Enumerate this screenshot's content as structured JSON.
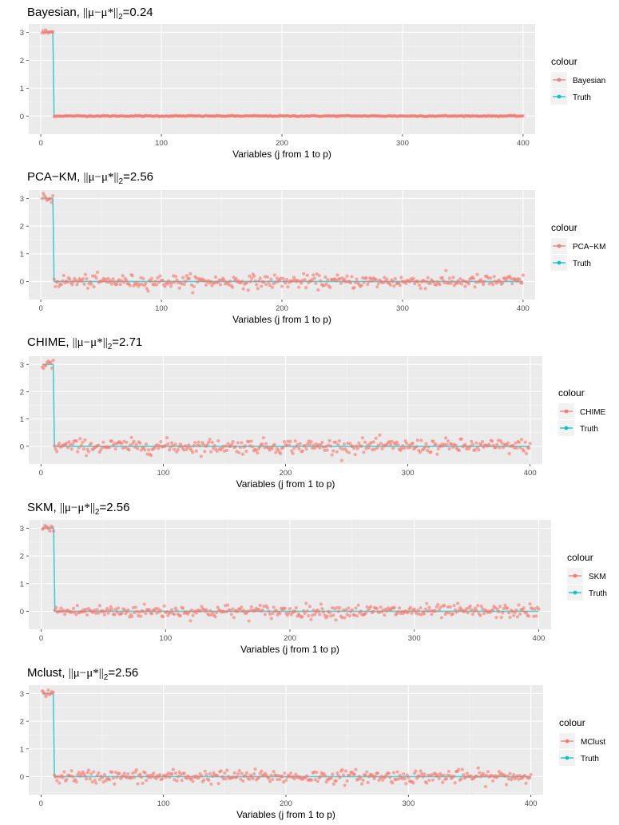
{
  "colors": {
    "estimate": "#F8766D",
    "truth": "#00BFC4",
    "panel_bg": "#EBEBEB",
    "grid_major": "#FFFFFF",
    "tick_text": "#4D4D4D"
  },
  "legend_title": "colour",
  "chart_data": [
    {
      "type": "line+scatter",
      "title_prefix": "Bayesian, ",
      "title_norm": "||μ−μ*||",
      "title_sub": "2",
      "title_value": "=0.24",
      "xlabel": "Variables (j from 1 to p)",
      "ylabel": "",
      "x_ticks": [
        "0",
        "100",
        "200",
        "300",
        "400"
      ],
      "y_ticks": [
        "0",
        "1",
        "2",
        "3"
      ],
      "xlim": [
        -10,
        410
      ],
      "ylim": [
        -0.65,
        3.3
      ],
      "legend": [
        "Bayesian",
        "Truth"
      ],
      "truth": {
        "x_from": 1,
        "x_to": 400,
        "value_first_10": 3,
        "value_rest": 0
      },
      "estimate": {
        "n": 400,
        "first_10_mean": 3.0,
        "noise_sd_first_10": 0.06,
        "rest_mean": 0.0,
        "noise_sd_rest": 0.01
      }
    },
    {
      "type": "line+scatter",
      "title_prefix": "PCA−KM, ",
      "title_norm": "||μ−μ*||",
      "title_sub": "2",
      "title_value": "=2.56",
      "xlabel": "Variables (j from 1 to p)",
      "ylabel": "",
      "x_ticks": [
        "0",
        "100",
        "200",
        "300",
        "400"
      ],
      "y_ticks": [
        "0",
        "1",
        "2",
        "3"
      ],
      "xlim": [
        -10,
        410
      ],
      "ylim": [
        -0.65,
        3.3
      ],
      "legend": [
        "PCA−KM",
        "Truth"
      ],
      "truth": {
        "x_from": 1,
        "x_to": 400,
        "value_first_10": 3,
        "value_rest": 0
      },
      "estimate": {
        "n": 400,
        "first_10_mean": 3.0,
        "noise_sd_first_10": 0.08,
        "rest_mean": 0.0,
        "noise_sd_rest": 0.12
      }
    },
    {
      "type": "line+scatter",
      "title_prefix": "CHIME, ",
      "title_norm": "||μ−μ*||",
      "title_sub": "2",
      "title_value": "=2.71",
      "xlabel": "Variables (j from 1 to p)",
      "ylabel": "",
      "x_ticks": [
        "0",
        "100",
        "200",
        "300",
        "400"
      ],
      "y_ticks": [
        "0",
        "1",
        "2",
        "3"
      ],
      "xlim": [
        -10,
        410
      ],
      "ylim": [
        -0.65,
        3.3
      ],
      "legend": [
        "CHIME",
        "Truth"
      ],
      "truth": {
        "x_from": 1,
        "x_to": 400,
        "value_first_10": 3,
        "value_rest": 0
      },
      "estimate": {
        "n": 400,
        "first_10_mean": 3.0,
        "noise_sd_first_10": 0.1,
        "rest_mean": 0.0,
        "noise_sd_rest": 0.13
      }
    },
    {
      "type": "line+scatter",
      "title_prefix": "SKM, ",
      "title_norm": "||μ−μ*||",
      "title_sub": "2",
      "title_value": "=2.56",
      "xlabel": "Variables (j from 1 to p)",
      "ylabel": "",
      "x_ticks": [
        "0",
        "100",
        "200",
        "300",
        "400"
      ],
      "y_ticks": [
        "0",
        "1",
        "2",
        "3"
      ],
      "xlim": [
        -10,
        410
      ],
      "ylim": [
        -0.65,
        3.3
      ],
      "legend": [
        "SKM",
        "Truth"
      ],
      "truth": {
        "x_from": 1,
        "x_to": 400,
        "value_first_10": 3,
        "value_rest": 0
      },
      "estimate": {
        "n": 400,
        "first_10_mean": 3.0,
        "noise_sd_first_10": 0.06,
        "rest_mean": 0.0,
        "noise_sd_rest": 0.12
      }
    },
    {
      "type": "line+scatter",
      "title_prefix": "Mclust, ",
      "title_norm": "||μ−μ*||",
      "title_sub": "2",
      "title_value": "=2.56",
      "xlabel": "Variables (j from 1 to p)",
      "ylabel": "",
      "x_ticks": [
        "0",
        "100",
        "200",
        "300",
        "400"
      ],
      "y_ticks": [
        "0",
        "1",
        "2",
        "3"
      ],
      "xlim": [
        -10,
        410
      ],
      "ylim": [
        -0.65,
        3.3
      ],
      "legend": [
        "MClust",
        "Truth"
      ],
      "truth": {
        "x_from": 1,
        "x_to": 400,
        "value_first_10": 3,
        "value_rest": 0
      },
      "estimate": {
        "n": 400,
        "first_10_mean": 3.0,
        "noise_sd_first_10": 0.07,
        "rest_mean": 0.0,
        "noise_sd_rest": 0.12
      }
    }
  ]
}
